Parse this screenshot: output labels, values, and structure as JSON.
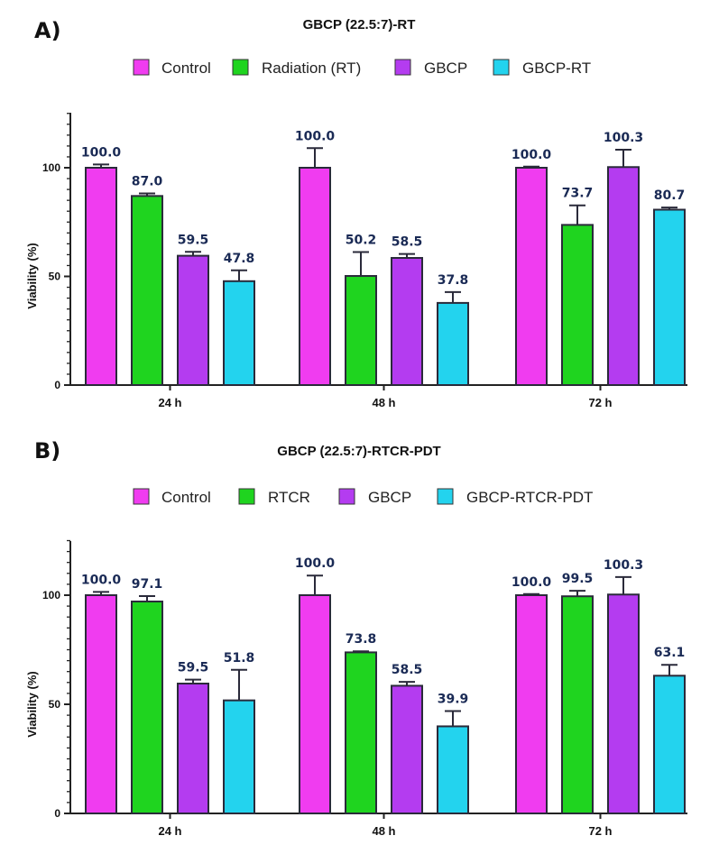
{
  "chart_data": [
    {
      "type": "bar",
      "panel": "A)",
      "title": "GBCP (22.5:7)-RT",
      "xlabel": "",
      "ylabel": "Viability (%)",
      "ylim": [
        0,
        125
      ],
      "yticks": [
        "0",
        "50",
        "100"
      ],
      "categories": [
        "24 h",
        "48 h",
        "72 h"
      ],
      "legend_position": "top-center",
      "series": [
        {
          "name": "Control",
          "color": "#f03cf0",
          "values": [
            100.0,
            100.0,
            100.0
          ],
          "labels": [
            "100.0",
            "100.0",
            "100.0"
          ],
          "errors": [
            1.5,
            9,
            0.5
          ]
        },
        {
          "name": "Radiation (RT)",
          "color": "#1fd41f",
          "values": [
            87.0,
            50.2,
            73.7
          ],
          "labels": [
            "87.0",
            "50.2",
            "73.7"
          ],
          "errors": [
            1.2,
            11,
            9
          ]
        },
        {
          "name": "GBCP",
          "color": "#b43cf0",
          "values": [
            59.5,
            58.5,
            100.3
          ],
          "labels": [
            "59.5",
            "58.5",
            "100.3"
          ],
          "errors": [
            1.8,
            1.8,
            8
          ]
        },
        {
          "name": "GBCP-RT",
          "color": "#23d3ee",
          "values": [
            47.8,
            37.8,
            80.7
          ],
          "labels": [
            "47.8",
            "37.8",
            "80.7"
          ],
          "errors": [
            5,
            5,
            1
          ]
        }
      ]
    },
    {
      "type": "bar",
      "panel": "B)",
      "title": "GBCP (22.5:7)-RTCR-PDT",
      "xlabel": "",
      "ylabel": "Viability (%)",
      "ylim": [
        0,
        125
      ],
      "yticks": [
        "0",
        "50",
        "100"
      ],
      "categories": [
        "24 h",
        "48 h",
        "72 h"
      ],
      "legend_position": "top-center",
      "series": [
        {
          "name": "Control",
          "color": "#f03cf0",
          "values": [
            100.0,
            100.0,
            100.0
          ],
          "labels": [
            "100.0",
            "100.0",
            "100.0"
          ],
          "errors": [
            1.5,
            9,
            0.5
          ]
        },
        {
          "name": "RTCR",
          "color": "#1fd41f",
          "values": [
            97.1,
            73.8,
            99.5
          ],
          "labels": [
            "97.1",
            "73.8",
            "99.5"
          ],
          "errors": [
            2.5,
            0.5,
            2.5
          ]
        },
        {
          "name": "GBCP",
          "color": "#b43cf0",
          "values": [
            59.5,
            58.5,
            100.3
          ],
          "labels": [
            "59.5",
            "58.5",
            "100.3"
          ],
          "errors": [
            1.8,
            1.8,
            8
          ]
        },
        {
          "name": "GBCP-RTCR-PDT",
          "color": "#23d3ee",
          "values": [
            51.8,
            39.9,
            63.1
          ],
          "labels": [
            "51.8",
            "39.9",
            "63.1"
          ],
          "errors": [
            14,
            7,
            5
          ]
        }
      ]
    }
  ]
}
